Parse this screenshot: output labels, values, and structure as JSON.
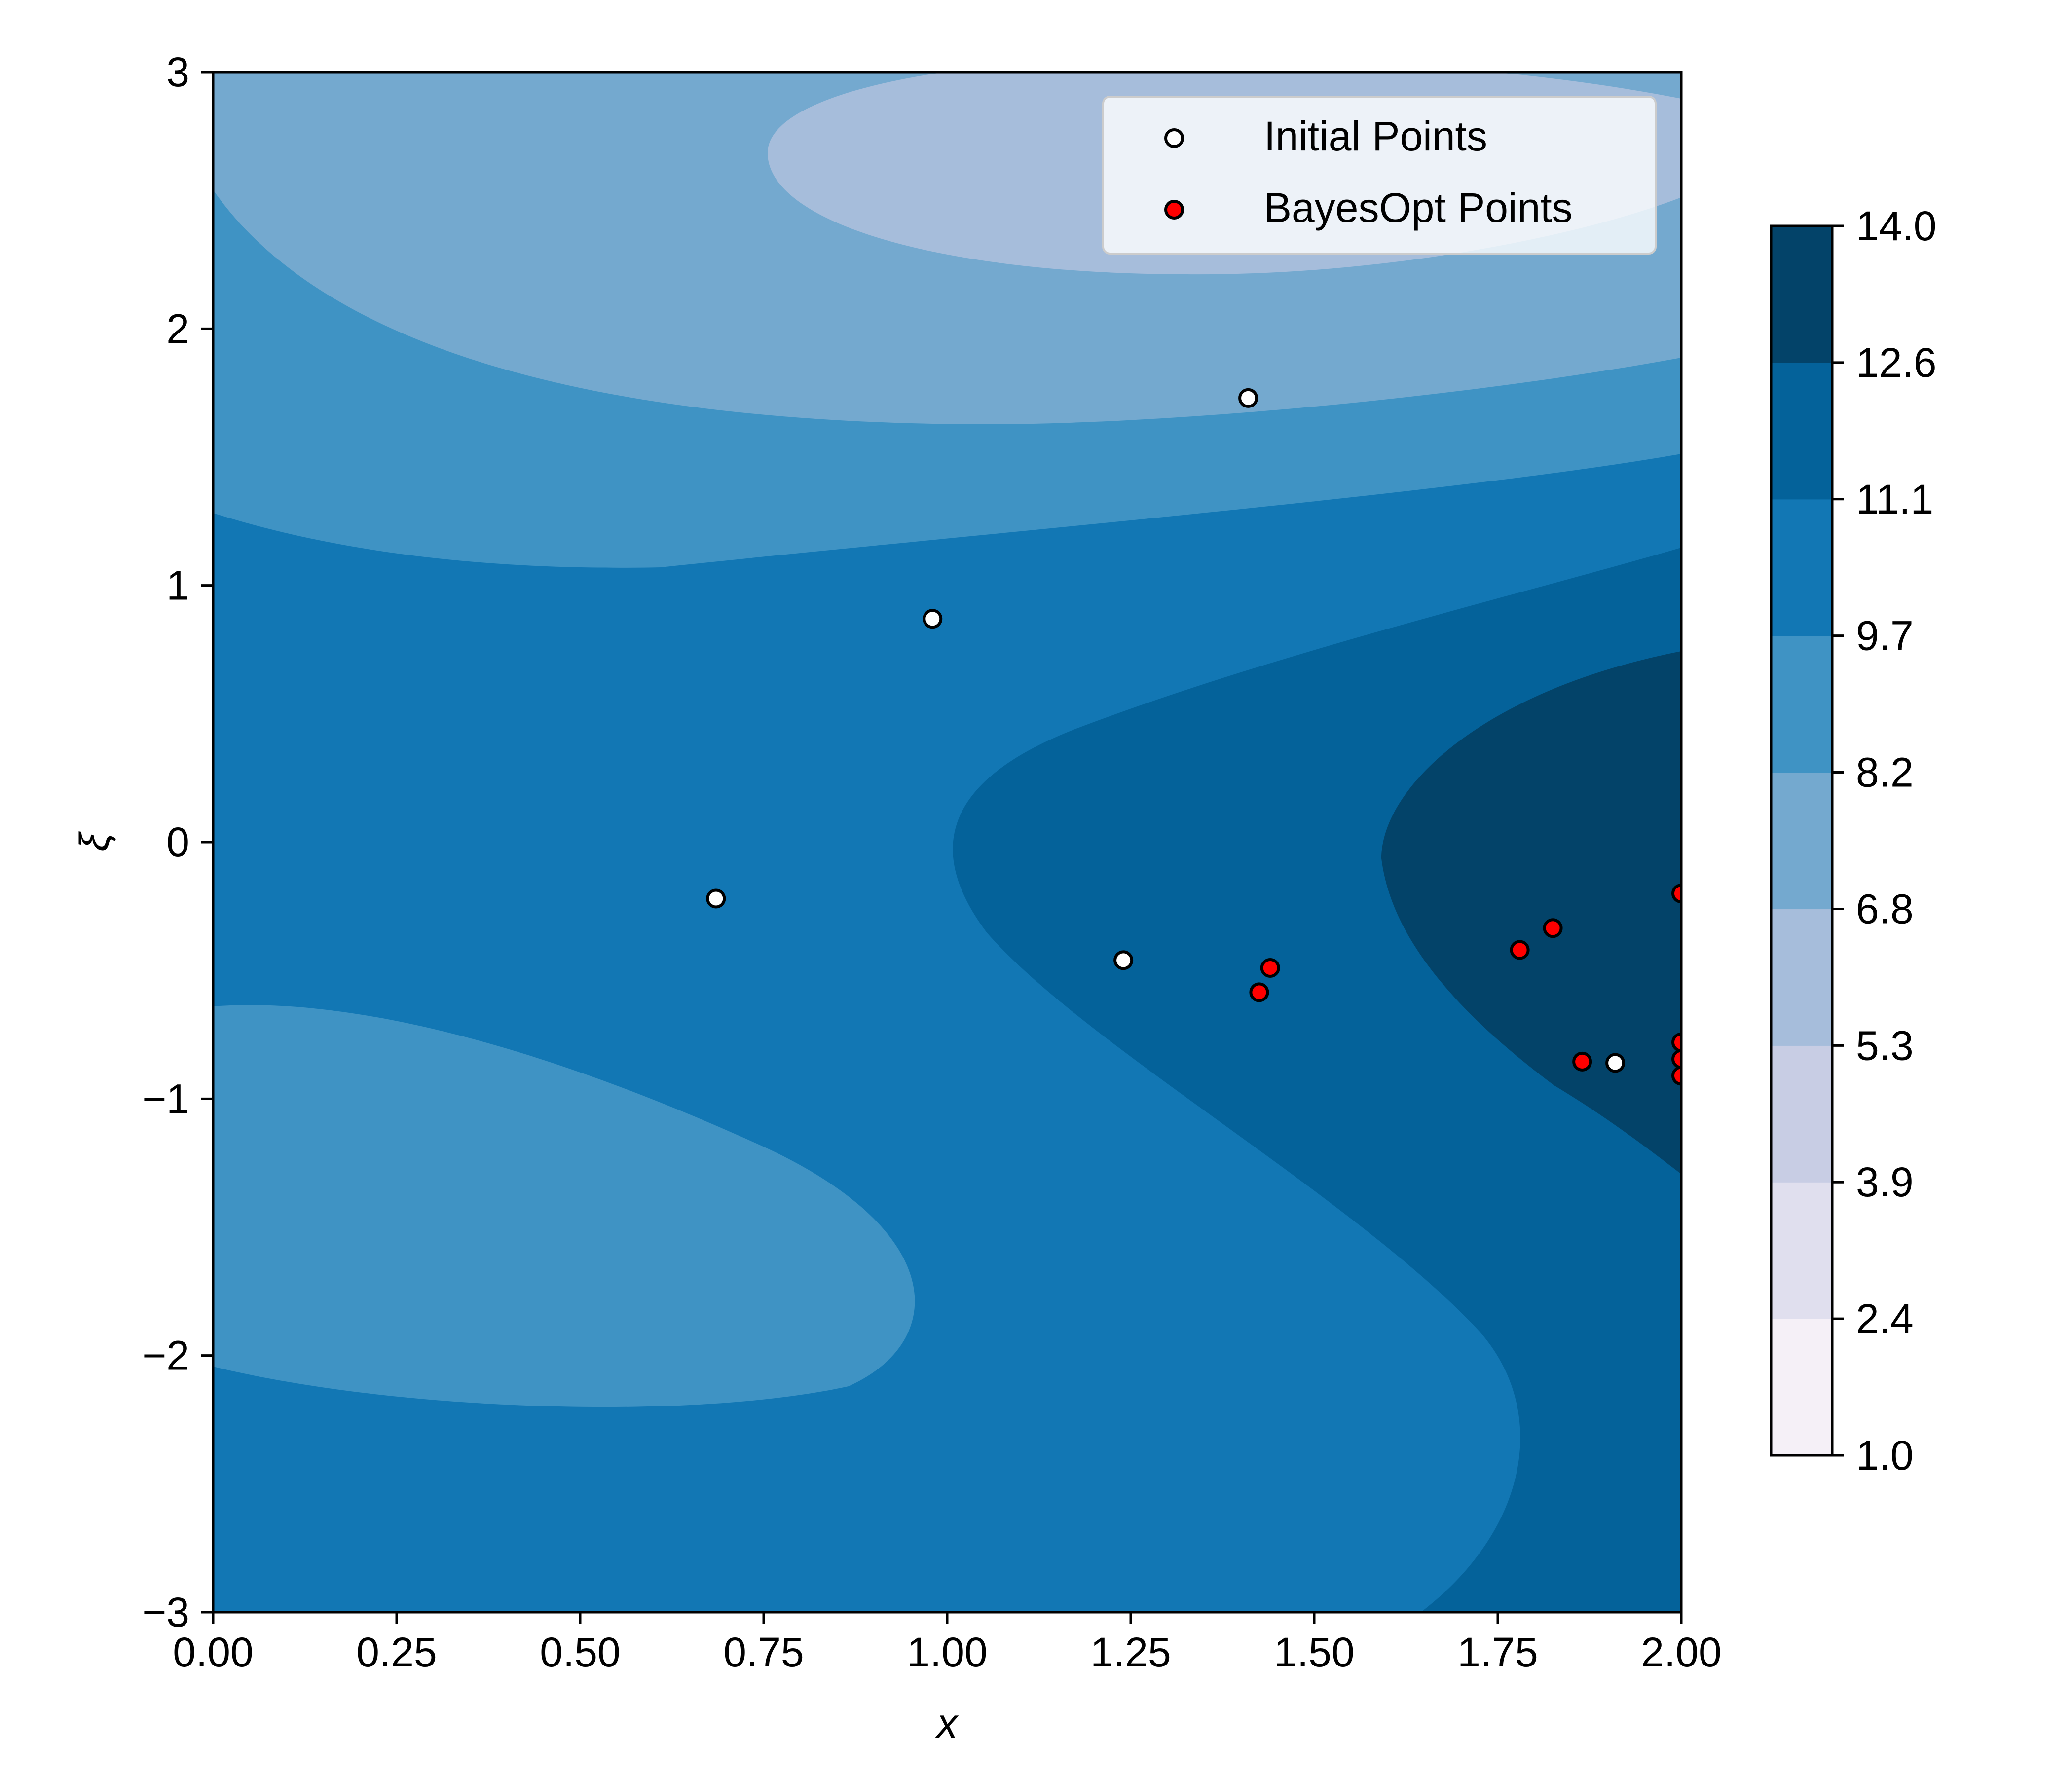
{
  "chart_data": {
    "type": "contour-scatter",
    "title": "",
    "xlabel": "x",
    "ylabel": "ξ",
    "xlim": [
      0.0,
      2.0
    ],
    "ylim": [
      -3,
      3
    ],
    "xticks": [
      {
        "value": 0.0,
        "label": "0.00"
      },
      {
        "value": 0.25,
        "label": "0.25"
      },
      {
        "value": 0.5,
        "label": "0.50"
      },
      {
        "value": 0.75,
        "label": "0.75"
      },
      {
        "value": 1.0,
        "label": "1.00"
      },
      {
        "value": 1.25,
        "label": "1.25"
      },
      {
        "value": 1.5,
        "label": "1.50"
      },
      {
        "value": 1.75,
        "label": "1.75"
      },
      {
        "value": 2.0,
        "label": "2.00"
      }
    ],
    "yticks": [
      {
        "value": 3,
        "label": "3"
      },
      {
        "value": 2,
        "label": "2"
      },
      {
        "value": 1,
        "label": "1"
      },
      {
        "value": 0,
        "label": "0"
      },
      {
        "value": -1,
        "label": "−1"
      },
      {
        "value": -2,
        "label": "−2"
      },
      {
        "value": -3,
        "label": "−3"
      }
    ],
    "grid": false,
    "legend_position": "top-right",
    "colorbar": {
      "levels": [
        1.0,
        2.4,
        3.9,
        5.3,
        6.8,
        8.2,
        9.7,
        11.1,
        12.6,
        14.0
      ],
      "labels": [
        "1.0",
        "2.4",
        "3.9",
        "5.3",
        "6.8",
        "8.2",
        "9.7",
        "11.1",
        "12.6",
        "14.0"
      ],
      "colors": [
        "#f5f0f7",
        "#e0dfee",
        "#c8cde4",
        "#a6bddb",
        "#74a9cf",
        "#3f93c4",
        "#1277b4",
        "#04629a",
        "#034369"
      ]
    },
    "background_level_color": "#1277b4",
    "contour_regions": [
      {
        "level_range": [
          9.7,
          11.1
        ],
        "color": "#1277b4",
        "description": "background band covering most of the plot"
      },
      {
        "level_range": [
          8.2,
          9.7
        ],
        "color": "#3f93c4",
        "description": "upper band"
      },
      {
        "level_range": [
          6.8,
          8.2
        ],
        "color": "#74a9cf",
        "description": "upper band"
      },
      {
        "level_range": [
          5.3,
          6.8
        ],
        "color": "#a6bddb",
        "description": "top ellipse"
      },
      {
        "level_range": [
          8.2,
          9.7
        ],
        "color": "#3f93c4",
        "description": "lower-left ellipse"
      },
      {
        "level_range": [
          11.1,
          12.6
        ],
        "color": "#04629a",
        "description": "right-hand lobe"
      },
      {
        "level_range": [
          12.6,
          14.0
        ],
        "color": "#034369",
        "description": "right-hand core"
      }
    ],
    "series": [
      {
        "name": "Initial Points",
        "marker_face": "#ffffff",
        "marker_edge": "#000000",
        "points": [
          {
            "x": 1.41,
            "y": 1.73
          },
          {
            "x": 0.98,
            "y": 0.87
          },
          {
            "x": 0.685,
            "y": -0.22
          },
          {
            "x": 1.24,
            "y": -0.46
          },
          {
            "x": 1.91,
            "y": -0.86
          }
        ]
      },
      {
        "name": "BayesOpt Points",
        "marker_face": "#ff0000",
        "marker_edge": "#000000",
        "points": [
          {
            "x": 1.44,
            "y": -0.49
          },
          {
            "x": 1.425,
            "y": -0.585
          },
          {
            "x": 1.78,
            "y": -0.42
          },
          {
            "x": 1.825,
            "y": -0.335
          },
          {
            "x": 1.865,
            "y": -0.855
          },
          {
            "x": 2.0,
            "y": -0.2
          },
          {
            "x": 2.0,
            "y": -0.78
          },
          {
            "x": 2.0,
            "y": -0.845
          },
          {
            "x": 2.0,
            "y": -0.91
          }
        ]
      }
    ]
  }
}
